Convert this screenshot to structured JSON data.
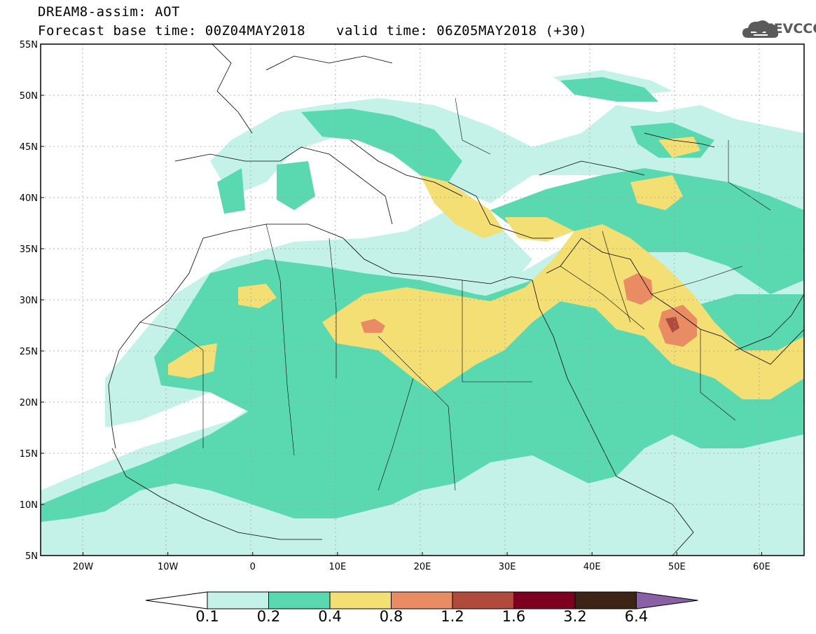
{
  "title": {
    "line1": "DREAM8-assim: AOT",
    "line2_left": "Forecast base time: 00Z04MAY2018",
    "line2_right": "valid time: 06Z05MAY2018 (+30)"
  },
  "logo": {
    "text": "SEEVCCC",
    "icon": "cloud-icon"
  },
  "map": {
    "lat_ticks": [
      "55N",
      "50N",
      "45N",
      "40N",
      "35N",
      "30N",
      "25N",
      "20N",
      "15N",
      "10N",
      "5N"
    ],
    "lon_ticks": [
      "20W",
      "10W",
      "0",
      "10E",
      "20E",
      "30E",
      "40E",
      "50E",
      "60E"
    ],
    "lat_range": [
      5,
      55
    ],
    "lon_range": [
      -25,
      65
    ]
  },
  "colorbar": {
    "labels": [
      "0.1",
      "0.2",
      "0.4",
      "0.8",
      "1.2",
      "1.6",
      "3.2",
      "6.4"
    ],
    "colors": [
      "#ffffff",
      "#c4f2e8",
      "#5ad8b0",
      "#f4df75",
      "#e98c63",
      "#b04a3c",
      "#7d0020",
      "#3c2416",
      "#8a5fa6"
    ]
  }
}
